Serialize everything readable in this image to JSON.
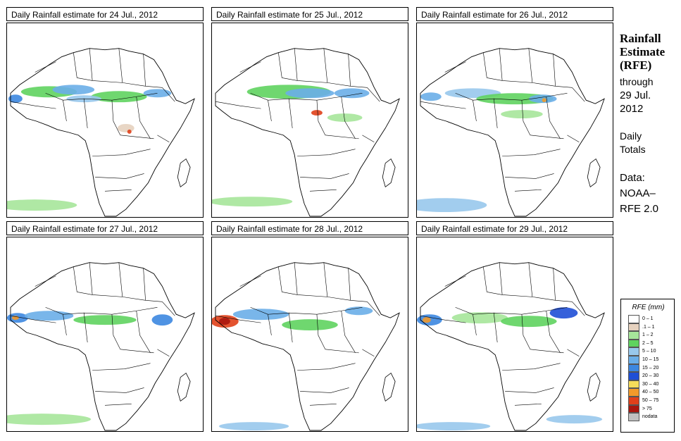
{
  "panels": [
    {
      "title": "Daily Rainfall estimate for  24 Jul., 2012"
    },
    {
      "title": "Daily Rainfall estimate for  25 Jul., 2012"
    },
    {
      "title": "Daily Rainfall estimate for  26 Jul., 2012"
    },
    {
      "title": "Daily Rainfall estimate for  27 Jul., 2012"
    },
    {
      "title": "Daily Rainfall estimate for  28 Jul., 2012"
    },
    {
      "title": "Daily Rainfall estimate for  29 Jul., 2012"
    }
  ],
  "sidebar": {
    "heading_line1": "Rainfall",
    "heading_line2": "Estimate",
    "heading_line3": "(RFE)",
    "through_line1": "through",
    "through_line2": "29 Jul.",
    "through_line3": "2012",
    "totals_line1": "Daily",
    "totals_line2": "Totals",
    "data_line1": "Data:",
    "data_line2": "NOAA–",
    "data_line3": "RFE 2.0"
  },
  "legend": {
    "title": "RFE (mm)",
    "items": [
      {
        "label": "0 – 1",
        "color": "#ffffff"
      },
      {
        "label": ".1 – 1",
        "color": "#e6d2bf"
      },
      {
        "label": "1 – 2",
        "color": "#a6e69a"
      },
      {
        "label": "2 – 5",
        "color": "#5fd35f"
      },
      {
        "label": "5 – 10",
        "color": "#98c8ec"
      },
      {
        "label": "10 – 15",
        "color": "#6aaee8"
      },
      {
        "label": "15 – 20",
        "color": "#3c87e0"
      },
      {
        "label": "20 – 30",
        "color": "#1f4fd6"
      },
      {
        "label": "30 – 40",
        "color": "#f6dc5a"
      },
      {
        "label": "40 – 50",
        "color": "#f29a2a"
      },
      {
        "label": "50 – 75",
        "color": "#e0401a"
      },
      {
        "label": "> 75",
        "color": "#a8160e"
      },
      {
        "label": "nodata",
        "color": "#c0c0c0"
      }
    ]
  }
}
